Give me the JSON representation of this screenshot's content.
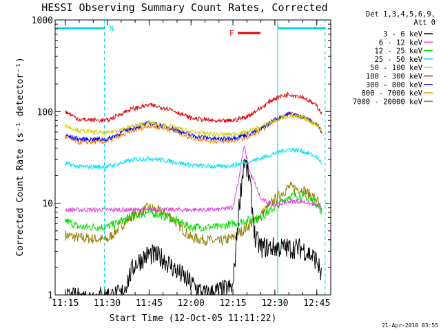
{
  "chart_data": {
    "type": "line",
    "title": "HESSI Observing Summary Count Rates, Corrected",
    "xlabel": "Start Time (12-Oct-05 11:11:22)",
    "ylabel": "Corrected Count Rate (s⁻¹ detector⁻¹)",
    "y_scale": "log",
    "ylim": [
      1,
      1000
    ],
    "xlim": [
      "11:11:22",
      "12:50"
    ],
    "x_ticks": [
      "11:15",
      "11:30",
      "11:45",
      "12:00",
      "12:15",
      "12:30",
      "12:45"
    ],
    "y_ticks": [
      "1",
      "10",
      "100",
      "1000"
    ],
    "legend_header": [
      "Det 1,3,4,5,6,9,",
      "Att 0"
    ],
    "legend_placement": "right",
    "series": [
      {
        "name": "3 - 6 keV",
        "color": "#000000",
        "x": [
          "11:15",
          "11:35",
          "11:40",
          "11:45",
          "11:50",
          "11:55",
          "12:05",
          "12:15",
          "12:17",
          "12:19",
          "12:21",
          "12:23",
          "12:25",
          "12:30",
          "12:40",
          "12:45",
          "12:47"
        ],
        "y": [
          0.9,
          1.0,
          2.2,
          2.8,
          2.5,
          1.8,
          1.0,
          1.2,
          8,
          30,
          18,
          4,
          3.3,
          3.3,
          3.2,
          2.4,
          1.5
        ]
      },
      {
        "name": "6 - 12 keV",
        "color": "#e040e0",
        "x": [
          "11:15",
          "11:30",
          "11:45",
          "12:00",
          "12:10",
          "12:15",
          "12:17",
          "12:19",
          "12:21",
          "12:23",
          "12:25",
          "12:30",
          "12:35",
          "12:40",
          "12:45",
          "12:47"
        ],
        "y": [
          8.5,
          8.5,
          8.5,
          8.5,
          8.5,
          9,
          18,
          42,
          22,
          16,
          11,
          9.5,
          10.5,
          10.5,
          9.5,
          8.5
        ]
      },
      {
        "name": "12 - 25 keV",
        "color": "#00e000",
        "x": [
          "11:15",
          "11:20",
          "11:30",
          "11:38",
          "11:45",
          "11:52",
          "12:00",
          "12:10",
          "12:15",
          "12:20",
          "12:25",
          "12:30",
          "12:35",
          "12:40",
          "12:45",
          "12:47"
        ],
        "y": [
          6.5,
          5.5,
          5.5,
          7,
          8,
          7,
          5.5,
          5.5,
          6,
          6.5,
          7,
          9,
          12,
          12,
          10,
          7.5
        ]
      },
      {
        "name": "25 - 50 keV",
        "color": "#00e0f0",
        "x": [
          "11:15",
          "11:20",
          "11:30",
          "11:40",
          "11:45",
          "11:52",
          "12:00",
          "12:10",
          "12:15",
          "12:20",
          "12:25",
          "12:30",
          "12:35",
          "12:40",
          "12:45",
          "12:47"
        ],
        "y": [
          27,
          25,
          25,
          30,
          31,
          29,
          26,
          25,
          26,
          28,
          31,
          35,
          39,
          37,
          32,
          27
        ]
      },
      {
        "name": "50 - 100 keV",
        "color": "#d0d000",
        "x": [
          "11:15",
          "11:20",
          "11:30",
          "11:38",
          "11:45",
          "11:52",
          "12:00",
          "12:10",
          "12:15",
          "12:20",
          "12:25",
          "12:30",
          "12:35",
          "12:40",
          "12:45",
          "12:47"
        ],
        "y": [
          70,
          62,
          58,
          68,
          75,
          70,
          60,
          56,
          57,
          60,
          68,
          80,
          90,
          85,
          72,
          62
        ]
      },
      {
        "name": "100 - 300 keV",
        "color": "#e00000",
        "x": [
          "11:15",
          "11:20",
          "11:30",
          "11:38",
          "11:45",
          "11:52",
          "12:00",
          "12:10",
          "12:15",
          "12:20",
          "12:25",
          "12:30",
          "12:35",
          "12:40",
          "12:45",
          "12:47"
        ],
        "y": [
          100,
          82,
          80,
          105,
          118,
          108,
          85,
          78,
          80,
          88,
          110,
          140,
          155,
          145,
          115,
          95
        ]
      },
      {
        "name": "300 - 800 keV",
        "color": "#0000ff",
        "x": [
          "11:15",
          "11:20",
          "11:30",
          "11:38",
          "11:45",
          "11:52",
          "12:00",
          "12:10",
          "12:15",
          "12:20",
          "12:25",
          "12:30",
          "12:35",
          "12:40",
          "12:45",
          "12:47"
        ],
        "y": [
          55,
          50,
          50,
          65,
          75,
          68,
          55,
          50,
          52,
          56,
          65,
          82,
          95,
          88,
          72,
          60
        ]
      },
      {
        "name": "800 - 7000 keV",
        "color": "#ff8000",
        "x": [
          "11:15",
          "11:20",
          "11:30",
          "11:38",
          "11:45",
          "11:52",
          "12:00",
          "12:10",
          "12:15",
          "12:20",
          "12:25",
          "12:30",
          "12:35",
          "12:40",
          "12:45",
          "12:47"
        ],
        "y": [
          52,
          46,
          47,
          60,
          70,
          64,
          52,
          47,
          48,
          52,
          62,
          80,
          95,
          88,
          72,
          58
        ]
      },
      {
        "name": "7000 - 20000 keV",
        "color": "#908000",
        "x": [
          "11:15",
          "11:20",
          "11:30",
          "11:38",
          "11:45",
          "11:52",
          "12:00",
          "12:10",
          "12:15",
          "12:20",
          "12:25",
          "12:30",
          "12:35",
          "12:40",
          "12:45",
          "12:47"
        ],
        "y": [
          4.5,
          4.2,
          4,
          7,
          9,
          7.5,
          4.2,
          3.8,
          4.2,
          5.5,
          7.5,
          11,
          15,
          14,
          11,
          7.5
        ]
      }
    ],
    "annotations": [
      {
        "text": "N",
        "color": "#00d8e8"
      },
      {
        "text": "F",
        "color": "#e00000"
      }
    ],
    "night_markers": [
      "11:29",
      "12:31",
      "12:48"
    ],
    "timestamp": "21-Apr-2010 03:55",
    "grid": false
  }
}
